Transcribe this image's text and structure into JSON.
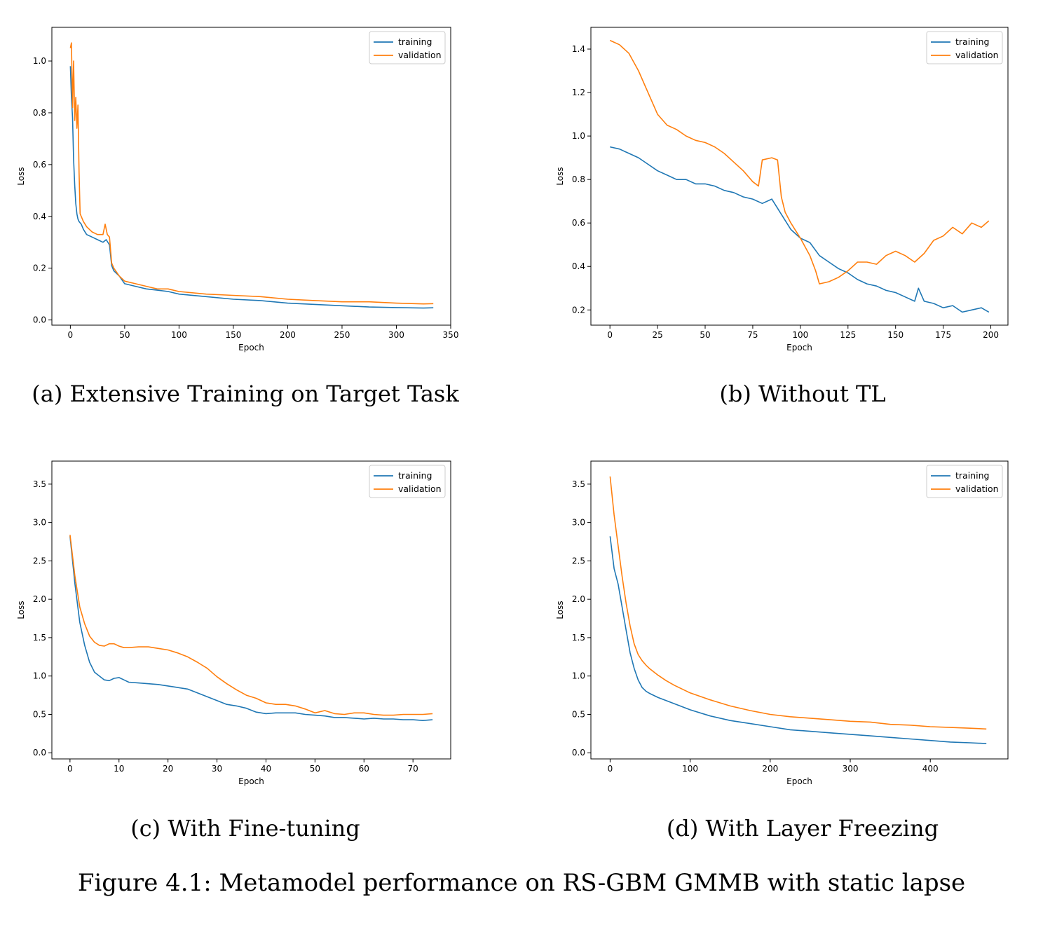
{
  "figure_caption": "Figure 4.1: Metamodel performance on RS-GBM GMMB with static lapse",
  "colors": {
    "training": "#1f77b4",
    "validation": "#ff7f0e"
  },
  "chart_data": [
    {
      "id": "a",
      "type": "line",
      "caption": "(a) Extensive Training on Target Task",
      "xlabel": "Epoch",
      "ylabel": "Loss",
      "xlim": [
        -17,
        350
      ],
      "ylim": [
        -0.02,
        1.13
      ],
      "xticks": [
        0,
        50,
        100,
        150,
        200,
        250,
        300,
        350
      ],
      "yticks": [
        0.0,
        0.2,
        0.4,
        0.6,
        0.8,
        1.0
      ],
      "legend": {
        "position": "upper-right",
        "entries": [
          "training",
          "validation"
        ]
      },
      "series": [
        {
          "name": "training",
          "x": [
            0,
            1,
            2,
            3,
            4,
            5,
            6,
            7,
            8,
            10,
            12,
            15,
            20,
            25,
            30,
            33,
            36,
            38,
            40,
            45,
            50,
            60,
            70,
            80,
            90,
            100,
            125,
            150,
            175,
            200,
            225,
            250,
            275,
            300,
            325,
            334
          ],
          "y": [
            0.98,
            0.86,
            0.78,
            0.62,
            0.52,
            0.45,
            0.41,
            0.39,
            0.38,
            0.37,
            0.35,
            0.33,
            0.32,
            0.31,
            0.3,
            0.31,
            0.29,
            0.21,
            0.19,
            0.17,
            0.14,
            0.13,
            0.12,
            0.115,
            0.11,
            0.1,
            0.09,
            0.08,
            0.075,
            0.065,
            0.06,
            0.055,
            0.05,
            0.048,
            0.046,
            0.047
          ]
        },
        {
          "name": "validation",
          "x": [
            0,
            1,
            2,
            3,
            4,
            5,
            6,
            7,
            8,
            9,
            10,
            12,
            15,
            20,
            25,
            30,
            32,
            34,
            36,
            38,
            40,
            45,
            50,
            60,
            70,
            80,
            90,
            100,
            125,
            150,
            175,
            200,
            225,
            250,
            275,
            300,
            325,
            334
          ],
          "y": [
            1.05,
            1.07,
            0.82,
            1.0,
            0.77,
            0.86,
            0.74,
            0.83,
            0.57,
            0.41,
            0.4,
            0.38,
            0.36,
            0.34,
            0.33,
            0.33,
            0.37,
            0.33,
            0.32,
            0.22,
            0.2,
            0.17,
            0.15,
            0.14,
            0.13,
            0.12,
            0.12,
            0.11,
            0.1,
            0.095,
            0.09,
            0.08,
            0.075,
            0.07,
            0.07,
            0.065,
            0.062,
            0.063
          ]
        }
      ]
    },
    {
      "id": "b",
      "type": "line",
      "caption": "(b) Without TL",
      "xlabel": "Epoch",
      "ylabel": "Loss",
      "xlim": [
        -10,
        209
      ],
      "ylim": [
        0.13,
        1.5
      ],
      "xticks": [
        0,
        25,
        50,
        75,
        100,
        125,
        150,
        175,
        200
      ],
      "yticks": [
        0.2,
        0.4,
        0.6,
        0.8,
        1.0,
        1.2,
        1.4
      ],
      "legend": {
        "position": "upper-right",
        "entries": [
          "training",
          "validation"
        ]
      },
      "series": [
        {
          "name": "training",
          "x": [
            0,
            5,
            10,
            15,
            20,
            25,
            30,
            35,
            40,
            45,
            50,
            55,
            60,
            65,
            70,
            75,
            80,
            85,
            90,
            95,
            100,
            105,
            110,
            115,
            120,
            125,
            130,
            135,
            140,
            145,
            150,
            155,
            160,
            162,
            165,
            170,
            175,
            180,
            185,
            190,
            195,
            199
          ],
          "y": [
            0.95,
            0.94,
            0.92,
            0.9,
            0.87,
            0.84,
            0.82,
            0.8,
            0.8,
            0.78,
            0.78,
            0.77,
            0.75,
            0.74,
            0.72,
            0.71,
            0.69,
            0.71,
            0.64,
            0.57,
            0.53,
            0.51,
            0.45,
            0.42,
            0.39,
            0.37,
            0.34,
            0.32,
            0.31,
            0.29,
            0.28,
            0.26,
            0.24,
            0.3,
            0.24,
            0.23,
            0.21,
            0.22,
            0.19,
            0.2,
            0.21,
            0.19
          ]
        },
        {
          "name": "validation",
          "x": [
            0,
            5,
            10,
            15,
            20,
            25,
            30,
            35,
            40,
            45,
            50,
            55,
            60,
            65,
            70,
            75,
            78,
            80,
            85,
            88,
            90,
            92,
            95,
            100,
            105,
            108,
            110,
            115,
            120,
            125,
            130,
            135,
            140,
            145,
            150,
            155,
            160,
            165,
            170,
            175,
            180,
            185,
            190,
            195,
            199
          ],
          "y": [
            1.44,
            1.42,
            1.38,
            1.3,
            1.2,
            1.1,
            1.05,
            1.03,
            1.0,
            0.98,
            0.97,
            0.95,
            0.92,
            0.88,
            0.84,
            0.79,
            0.77,
            0.89,
            0.9,
            0.89,
            0.72,
            0.65,
            0.6,
            0.53,
            0.45,
            0.38,
            0.32,
            0.33,
            0.35,
            0.38,
            0.42,
            0.42,
            0.41,
            0.45,
            0.47,
            0.45,
            0.42,
            0.46,
            0.52,
            0.54,
            0.58,
            0.55,
            0.6,
            0.58,
            0.61
          ]
        }
      ]
    },
    {
      "id": "c",
      "type": "line",
      "caption": "(c) With Fine-tuning",
      "xlabel": "Epoch",
      "ylabel": "Loss",
      "xlim": [
        -3.7,
        77.7
      ],
      "ylim": [
        -0.08,
        3.8
      ],
      "xticks": [
        0,
        10,
        20,
        30,
        40,
        50,
        60,
        70
      ],
      "yticks": [
        0.0,
        0.5,
        1.0,
        1.5,
        2.0,
        2.5,
        3.0,
        3.5
      ],
      "legend": {
        "position": "upper-right",
        "entries": [
          "training",
          "validation"
        ]
      },
      "series": [
        {
          "name": "training",
          "x": [
            0,
            1,
            2,
            3,
            4,
            5,
            6,
            7,
            8,
            9,
            10,
            11,
            12,
            14,
            16,
            18,
            20,
            22,
            24,
            26,
            28,
            30,
            32,
            34,
            36,
            38,
            40,
            42,
            44,
            46,
            48,
            50,
            52,
            54,
            56,
            58,
            60,
            62,
            64,
            66,
            68,
            70,
            72,
            74
          ],
          "y": [
            2.82,
            2.2,
            1.7,
            1.4,
            1.18,
            1.05,
            1.0,
            0.95,
            0.94,
            0.97,
            0.98,
            0.95,
            0.92,
            0.91,
            0.9,
            0.89,
            0.87,
            0.85,
            0.83,
            0.78,
            0.73,
            0.68,
            0.63,
            0.61,
            0.58,
            0.53,
            0.51,
            0.52,
            0.52,
            0.52,
            0.5,
            0.49,
            0.48,
            0.46,
            0.46,
            0.45,
            0.44,
            0.45,
            0.44,
            0.44,
            0.43,
            0.43,
            0.42,
            0.43
          ]
        },
        {
          "name": "validation",
          "x": [
            0,
            1,
            2,
            3,
            4,
            5,
            6,
            7,
            8,
            9,
            10,
            11,
            12,
            14,
            16,
            18,
            20,
            22,
            24,
            26,
            28,
            30,
            32,
            34,
            36,
            38,
            40,
            42,
            44,
            46,
            48,
            50,
            52,
            54,
            56,
            58,
            60,
            62,
            64,
            66,
            68,
            70,
            72,
            74
          ],
          "y": [
            2.84,
            2.3,
            1.9,
            1.68,
            1.52,
            1.44,
            1.4,
            1.39,
            1.42,
            1.42,
            1.39,
            1.37,
            1.37,
            1.38,
            1.38,
            1.36,
            1.34,
            1.3,
            1.25,
            1.18,
            1.1,
            0.99,
            0.9,
            0.82,
            0.75,
            0.71,
            0.65,
            0.63,
            0.63,
            0.61,
            0.57,
            0.52,
            0.55,
            0.51,
            0.5,
            0.52,
            0.52,
            0.5,
            0.49,
            0.49,
            0.5,
            0.5,
            0.5,
            0.51
          ]
        }
      ]
    },
    {
      "id": "d",
      "type": "line",
      "caption": "(d) With Layer Freezing",
      "xlabel": "Epoch",
      "ylabel": "Loss",
      "xlim": [
        -24,
        497
      ],
      "ylim": [
        -0.08,
        3.8
      ],
      "xticks": [
        0,
        100,
        200,
        300,
        400
      ],
      "yticks": [
        0.0,
        0.5,
        1.0,
        1.5,
        2.0,
        2.5,
        3.0,
        3.5
      ],
      "legend": {
        "position": "upper-right",
        "entries": [
          "training",
          "validation"
        ]
      },
      "series": [
        {
          "name": "training",
          "x": [
            0,
            5,
            10,
            15,
            20,
            25,
            30,
            35,
            40,
            45,
            50,
            60,
            70,
            80,
            90,
            100,
            125,
            150,
            175,
            200,
            225,
            250,
            275,
            300,
            325,
            350,
            375,
            400,
            425,
            450,
            470
          ],
          "y": [
            2.82,
            2.4,
            2.2,
            1.9,
            1.6,
            1.3,
            1.1,
            0.95,
            0.85,
            0.8,
            0.77,
            0.72,
            0.68,
            0.64,
            0.6,
            0.56,
            0.48,
            0.42,
            0.38,
            0.34,
            0.3,
            0.28,
            0.26,
            0.24,
            0.22,
            0.2,
            0.18,
            0.16,
            0.14,
            0.13,
            0.12
          ]
        },
        {
          "name": "validation",
          "x": [
            0,
            5,
            10,
            15,
            20,
            25,
            30,
            35,
            40,
            45,
            50,
            60,
            70,
            80,
            90,
            100,
            125,
            150,
            175,
            200,
            225,
            250,
            275,
            300,
            325,
            350,
            375,
            400,
            425,
            450,
            470
          ],
          "y": [
            3.6,
            3.1,
            2.7,
            2.3,
            1.95,
            1.65,
            1.42,
            1.28,
            1.2,
            1.14,
            1.09,
            1.01,
            0.94,
            0.88,
            0.83,
            0.78,
            0.69,
            0.61,
            0.55,
            0.5,
            0.47,
            0.45,
            0.43,
            0.41,
            0.4,
            0.37,
            0.36,
            0.34,
            0.33,
            0.32,
            0.31
          ]
        }
      ]
    }
  ]
}
